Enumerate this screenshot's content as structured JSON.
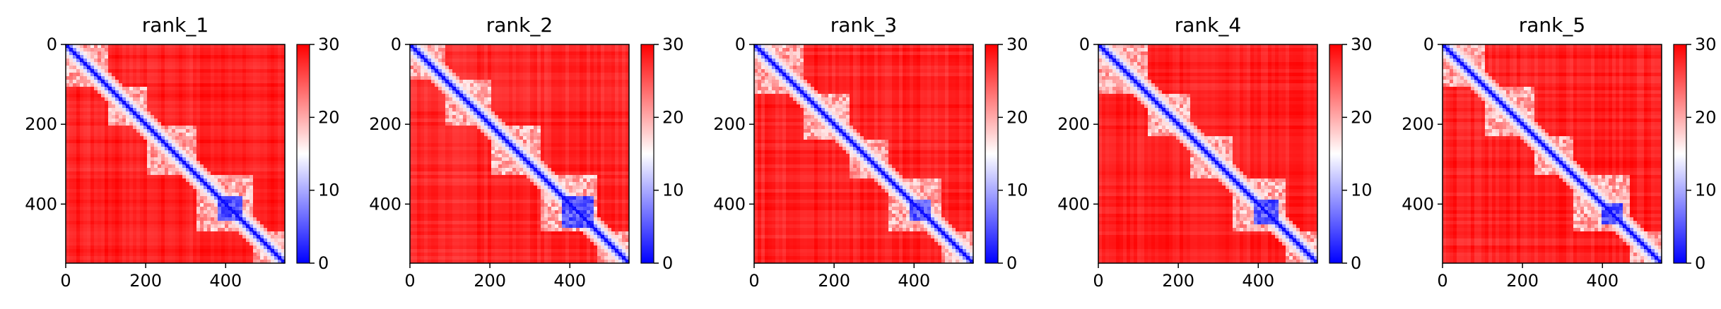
{
  "chart_data": [
    {
      "type": "heatmap",
      "title": "rank_1",
      "matrix_size": 548,
      "x_ticks": [
        "0",
        "200",
        "400"
      ],
      "y_ticks": [
        "0",
        "200",
        "400"
      ],
      "colorbar": {
        "ticks": [
          "0",
          "10",
          "20",
          "30"
        ],
        "vmin": 0,
        "vmax": 30,
        "colormap": "bwr",
        "colors": [
          "#0000ff",
          "#ffffff",
          "#ff0000"
        ]
      },
      "blue_domains": [
        [
          0,
          110
        ],
        [
          110,
          200
        ],
        [
          200,
          330
        ],
        [
          330,
          470
        ],
        [
          470,
          548
        ]
      ],
      "dense_block": [
        380,
        440
      ]
    },
    {
      "type": "heatmap",
      "title": "rank_2",
      "matrix_size": 548,
      "x_ticks": [
        "0",
        "200",
        "400"
      ],
      "y_ticks": [
        "0",
        "200",
        "400"
      ],
      "colorbar": {
        "ticks": [
          "0",
          "10",
          "20",
          "30"
        ],
        "vmin": 0,
        "vmax": 30,
        "colormap": "bwr",
        "colors": [
          "#0000ff",
          "#ffffff",
          "#ff0000"
        ]
      },
      "blue_domains": [
        [
          0,
          90
        ],
        [
          90,
          200
        ],
        [
          200,
          330
        ],
        [
          330,
          470
        ],
        [
          470,
          548
        ]
      ],
      "dense_block": [
        380,
        460
      ]
    },
    {
      "type": "heatmap",
      "title": "rank_3",
      "matrix_size": 548,
      "x_ticks": [
        "0",
        "200",
        "400"
      ],
      "y_ticks": [
        "0",
        "200",
        "400"
      ],
      "colorbar": {
        "ticks": [
          "0",
          "10",
          "20",
          "30"
        ],
        "vmin": 0,
        "vmax": 30,
        "colormap": "bwr",
        "colors": [
          "#0000ff",
          "#ffffff",
          "#ff0000"
        ]
      },
      "blue_domains": [
        [
          0,
          120
        ],
        [
          120,
          240
        ],
        [
          240,
          340
        ],
        [
          340,
          470
        ],
        [
          470,
          548
        ]
      ],
      "dense_block": [
        385,
        445
      ]
    },
    {
      "type": "heatmap",
      "title": "rank_4",
      "matrix_size": 548,
      "x_ticks": [
        "0",
        "200",
        "400"
      ],
      "y_ticks": [
        "0",
        "200",
        "400"
      ],
      "colorbar": {
        "ticks": [
          "0",
          "10",
          "20",
          "30"
        ],
        "vmin": 0,
        "vmax": 30,
        "colormap": "bwr",
        "colors": [
          "#0000ff",
          "#ffffff",
          "#ff0000"
        ]
      },
      "blue_domains": [
        [
          0,
          120
        ],
        [
          120,
          230
        ],
        [
          230,
          340
        ],
        [
          340,
          470
        ],
        [
          470,
          548
        ]
      ],
      "dense_block": [
        390,
        450
      ]
    },
    {
      "type": "heatmap",
      "title": "rank_5",
      "matrix_size": 548,
      "x_ticks": [
        "0",
        "200",
        "400"
      ],
      "y_ticks": [
        "0",
        "200",
        "400"
      ],
      "colorbar": {
        "ticks": [
          "0",
          "10",
          "20",
          "30"
        ],
        "vmin": 0,
        "vmax": 30,
        "colormap": "bwr",
        "colors": [
          "#0000ff",
          "#ffffff",
          "#ff0000"
        ]
      },
      "blue_domains": [
        [
          0,
          110
        ],
        [
          110,
          230
        ],
        [
          230,
          330
        ],
        [
          330,
          470
        ],
        [
          470,
          548
        ]
      ],
      "dense_block": [
        395,
        450
      ]
    }
  ]
}
